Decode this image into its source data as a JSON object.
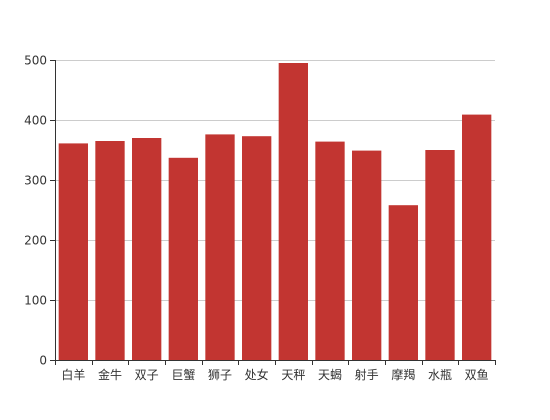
{
  "chart_data": {
    "type": "bar",
    "categories": [
      "白羊",
      "金牛",
      "双子",
      "巨蟹",
      "狮子",
      "处女",
      "天秤",
      "天蝎",
      "射手",
      "摩羯",
      "水瓶",
      "双鱼"
    ],
    "values": [
      361,
      365,
      370,
      337,
      376,
      373,
      495,
      364,
      349,
      258,
      350,
      409
    ],
    "ylim": [
      0,
      500
    ],
    "yticks": [
      0,
      100,
      200,
      300,
      400,
      500
    ],
    "grid": true,
    "bar_color": "#c23531"
  }
}
